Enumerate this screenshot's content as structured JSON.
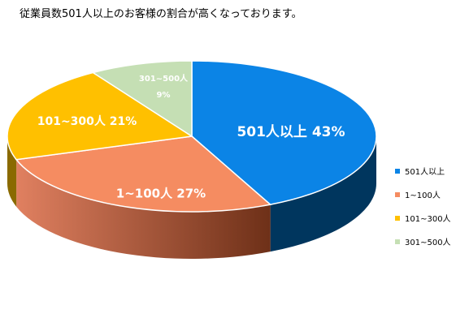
{
  "chart_data": {
    "type": "pie",
    "title": "従業員数501人以上のお客様の割合が高くなっております。",
    "categories": [
      "501人以上",
      "1~100人",
      "101~300人",
      "301~500人"
    ],
    "values": [
      43,
      27,
      21,
      9
    ],
    "colors": [
      "#0B84E6",
      "#F58C61",
      "#FFC000",
      "#C5DFB4"
    ],
    "side_colors": [
      "#00365E",
      "#6E3018",
      "#8A6A00",
      "#6E8A5E"
    ],
    "slice_labels": [
      {
        "name": "501人以上",
        "value": "43%"
      },
      {
        "name": "1~100人",
        "value": "27%"
      },
      {
        "name": "101~300人",
        "value": "21%"
      },
      {
        "name": "301~500人",
        "value": "9%"
      }
    ],
    "legend": {
      "position": "right",
      "entries": [
        "501人以上",
        "1~100人",
        "101~300人",
        "301~500人"
      ]
    }
  }
}
